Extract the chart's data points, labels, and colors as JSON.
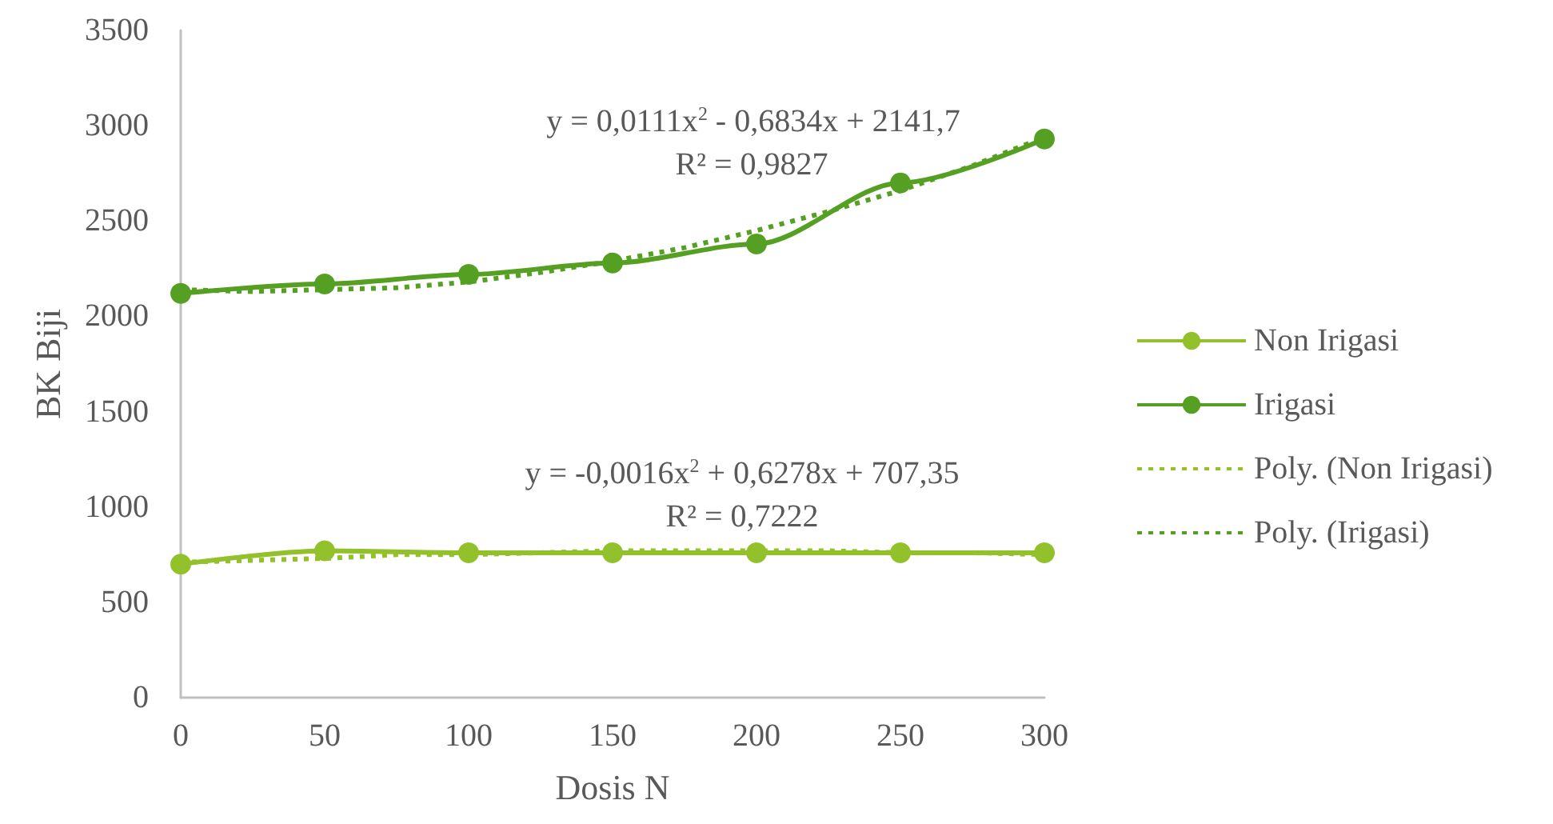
{
  "chart_data": {
    "type": "line",
    "xlabel": "Dosis N",
    "ylabel": "BK Biji",
    "x": [
      0,
      50,
      100,
      150,
      200,
      250,
      300
    ],
    "xlim": [
      0,
      300
    ],
    "xticks": [
      0,
      50,
      100,
      150,
      200,
      250,
      300
    ],
    "ylim": [
      0,
      3500
    ],
    "yticks": [
      0,
      500,
      1000,
      1500,
      2000,
      2500,
      3000,
      3500
    ],
    "legend": "right",
    "marker": "circle",
    "series": [
      {
        "name": "Non Irigasi",
        "color": "#92c12b",
        "values": [
          700,
          770,
          760,
          760,
          760,
          760,
          760
        ]
      },
      {
        "name": "Irigasi",
        "color": "#55a023",
        "values": [
          2120,
          2170,
          2220,
          2280,
          2380,
          2700,
          2930
        ]
      },
      {
        "name": "Poly. (Non Irigasi)",
        "color": "#92c12b",
        "marker": "none",
        "line_style": "dotted",
        "x": [
          0,
          25,
          50,
          75,
          100,
          125,
          150,
          175,
          200,
          225,
          250,
          275,
          300
        ],
        "values": [
          710,
          720,
          730,
          750,
          750,
          760,
          770,
          770,
          770,
          770,
          760,
          760,
          750
        ]
      },
      {
        "name": "Poly. (Irigasi)",
        "color": "#55a023",
        "marker": "none",
        "line_style": "dotted",
        "x": [
          0,
          25,
          50,
          75,
          100,
          125,
          150,
          175,
          200,
          225,
          250,
          275,
          300
        ],
        "values": [
          2140,
          2130,
          2140,
          2150,
          2180,
          2230,
          2290,
          2360,
          2450,
          2550,
          2660,
          2790,
          2940
        ]
      }
    ],
    "annotations": [
      "y = 0,0111x$^{2}$ - 0,6834x + 2141,7",
      "R² = 0,9827",
      "y = -0,0016x$^{2}$ + 0,6278x + 707,35",
      "R² = 0,7222"
    ]
  }
}
